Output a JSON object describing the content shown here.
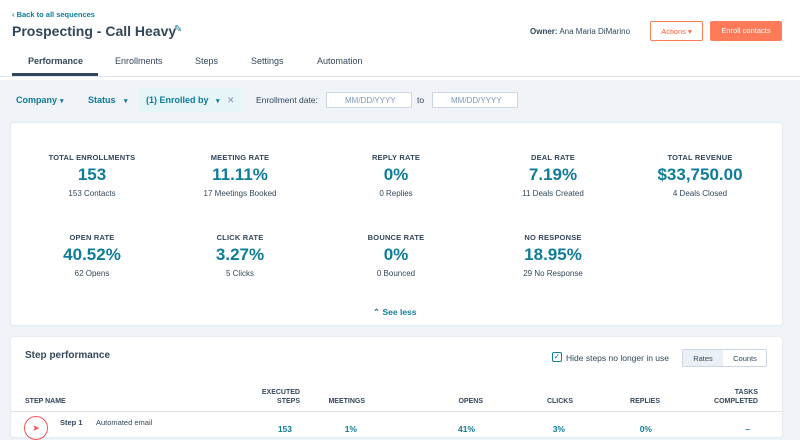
{
  "header": {
    "back": "Back to all sequences",
    "title": "Prospecting - Call Heavy",
    "owner_label": "Owner:",
    "owner": "Ana Maria DiMarino",
    "actions": "Actions",
    "enroll": "Enroll contacts"
  },
  "tabs": [
    "Performance",
    "Enrollments",
    "Steps",
    "Settings",
    "Automation"
  ],
  "filters": {
    "items": [
      "Company",
      "Status",
      "(1) Enrolled by"
    ],
    "date_label": "Enrollment date:",
    "placeholder": "MM/DD/YYYY",
    "to": "to"
  },
  "metrics": [
    {
      "label": "TOTAL ENROLLMENTS",
      "value": "153",
      "sub": "153 Contacts"
    },
    {
      "label": "MEETING RATE",
      "value": "11.11%",
      "sub": "17 Meetings Booked"
    },
    {
      "label": "REPLY RATE",
      "value": "0%",
      "sub": "0 Replies"
    },
    {
      "label": "DEAL RATE",
      "value": "7.19%",
      "sub": "11 Deals Created"
    },
    {
      "label": "TOTAL REVENUE",
      "value": "$33,750.00",
      "sub": "4 Deals Closed"
    },
    {
      "label": "OPEN RATE",
      "value": "40.52%",
      "sub": "62 Opens"
    },
    {
      "label": "CLICK RATE",
      "value": "3.27%",
      "sub": "5 Clicks"
    },
    {
      "label": "BOUNCE RATE",
      "value": "0%",
      "sub": "0 Bounced"
    },
    {
      "label": "NO RESPONSE",
      "value": "18.95%",
      "sub": "29 No Response"
    }
  ],
  "see_less": "See less",
  "step_performance": {
    "title": "Step performance",
    "hide": "Hide steps no longer in use",
    "toggles": [
      "Rates",
      "Counts"
    ],
    "columns": [
      "STEP NAME",
      "EXECUTED STEPS",
      "MEETINGS",
      "OPENS",
      "CLICKS",
      "REPLIES",
      "TASKS COMPLETED"
    ],
    "rows": [
      {
        "step": "Step 1",
        "type": "Automated email",
        "values": [
          "153",
          "1%",
          "41%",
          "3%",
          "0%",
          "–"
        ]
      }
    ]
  }
}
